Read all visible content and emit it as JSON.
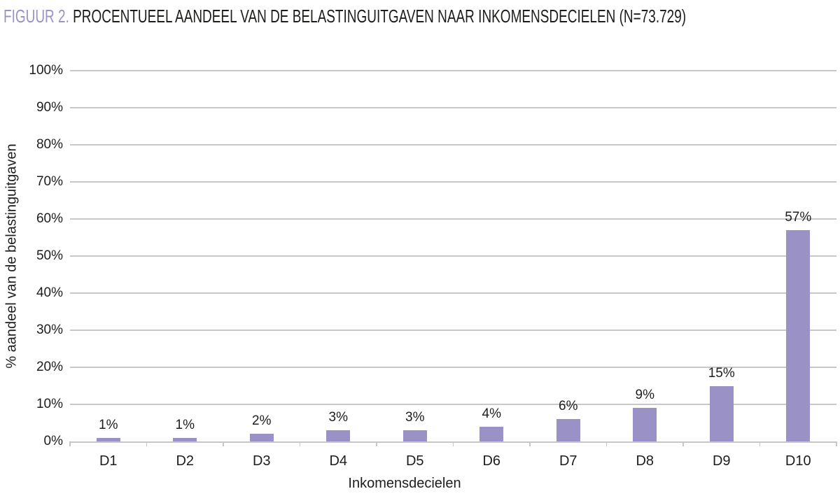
{
  "figure": {
    "title_prefix": "FIGUUR 2.",
    "title_text": " PROCENTUEEL AANDEEL VAN DE BELASTINGUITGAVEN NAAR INKOMENSDECIELEN (N=73.729)"
  },
  "chart_data": {
    "type": "bar",
    "title": "FIGUUR 2. PROCENTUEEL AANDEEL VAN DE BELASTINGUITGAVEN NAAR INKOMENSDECIELEN (N=73.729)",
    "categories": [
      "D1",
      "D2",
      "D3",
      "D4",
      "D5",
      "D6",
      "D7",
      "D8",
      "D9",
      "D10"
    ],
    "values": [
      1,
      1,
      2,
      3,
      3,
      4,
      6,
      9,
      15,
      57
    ],
    "value_labels": [
      "1%",
      "1%",
      "2%",
      "3%",
      "3%",
      "4%",
      "6%",
      "9%",
      "15%",
      "57%"
    ],
    "xlabel": "Inkomensdecielen",
    "ylabel": "% aandeel van de belastinguitgaven",
    "ylim": [
      0,
      100
    ],
    "ytick_step": 10,
    "ytick_labels": [
      "0%",
      "10%",
      "20%",
      "30%",
      "40%",
      "50%",
      "60%",
      "70%",
      "80%",
      "90%",
      "100%"
    ],
    "grid": "horizontal",
    "legend": "none",
    "colors": {
      "bar": "#9a91c7",
      "title_accent": "#9d92c4",
      "gridline": "#c8c8c8",
      "axis": "#c6c6c6",
      "text": "#1d1d1b"
    }
  }
}
